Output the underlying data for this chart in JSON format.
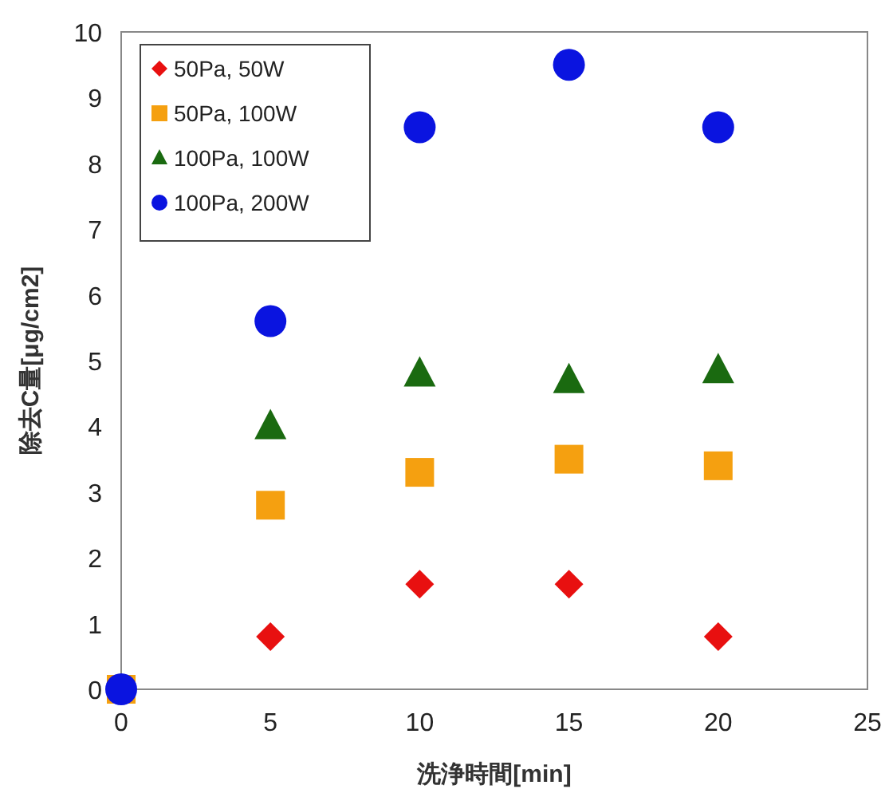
{
  "chart_data": {
    "type": "scatter",
    "xlabel": "洗浄時間[min]",
    "ylabel": "除去C量[μg/cm2]",
    "x": [
      0,
      5,
      10,
      15,
      20
    ],
    "xlim": [
      0,
      25
    ],
    "xticks": [
      0,
      5,
      10,
      15,
      20,
      25
    ],
    "ylim": [
      0,
      10
    ],
    "yticks": [
      0,
      1,
      2,
      3,
      4,
      5,
      6,
      7,
      8,
      9,
      10
    ],
    "grid": false,
    "legend": "top left",
    "series": [
      {
        "name": "50Pa, 50W",
        "color": "#e81010",
        "marker": "diamond",
        "values": [
          null,
          0.8,
          1.6,
          1.6,
          0.8
        ]
      },
      {
        "name": "50Pa, 100W",
        "color": "#f5a010",
        "marker": "square",
        "values": [
          0,
          2.8,
          3.3,
          3.5,
          3.4
        ]
      },
      {
        "name": "100Pa, 100W",
        "color": "#1a6a10",
        "marker": "triangle",
        "values": [
          null,
          4.0,
          4.8,
          4.7,
          4.85
        ]
      },
      {
        "name": "100Pa, 200W",
        "color": "#0a14e0",
        "marker": "circle",
        "values": [
          0,
          5.6,
          8.55,
          9.5,
          8.55
        ]
      }
    ]
  }
}
